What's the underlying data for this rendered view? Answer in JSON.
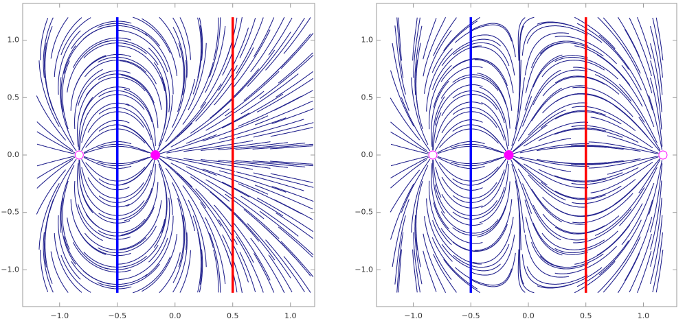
{
  "chart_data": [
    {
      "type": "streamplot",
      "xlim": [
        -1.32,
        1.21
      ],
      "ylim": [
        -1.32,
        1.32
      ],
      "xticks": [
        {
          "value": -1,
          "label": "−1.0"
        },
        {
          "value": -0.5,
          "label": "−0.5"
        },
        {
          "value": 0,
          "label": "0.0"
        },
        0.5,
        {
          "value": 1,
          "label": "1.0"
        }
      ],
      "yticks": [
        {
          "value": -1,
          "label": "−1.0"
        },
        {
          "value": -0.5,
          "label": "−0.5"
        },
        {
          "value": 0,
          "label": "0.0"
        },
        0.5,
        {
          "value": 1,
          "label": "1.0"
        }
      ],
      "stream_color": "#23238e",
      "stream_region": [
        -1.2,
        1.2
      ],
      "vlines": [
        {
          "x": -0.5,
          "color": "#0000ff"
        },
        {
          "x": 0.5,
          "color": "#ff0000"
        }
      ],
      "points": [
        {
          "x": -0.83,
          "y": 0,
          "filled": false,
          "color": "#ff00ff"
        },
        {
          "x": -0.17,
          "y": 0,
          "filled": true,
          "color": "#ff00ff"
        }
      ]
    },
    {
      "type": "streamplot",
      "xlim": [
        -1.32,
        1.29
      ],
      "ylim": [
        -1.32,
        1.32
      ],
      "xticks": [
        {
          "value": -1,
          "label": "−1.0"
        },
        {
          "value": -0.5,
          "label": "−0.5"
        },
        {
          "value": 0,
          "label": "0.0"
        },
        0.5,
        {
          "value": 1,
          "label": "1.0"
        }
      ],
      "yticks": [
        {
          "value": -1,
          "label": "−1.0"
        },
        {
          "value": -0.5,
          "label": "−0.5"
        },
        {
          "value": 0,
          "label": "0.0"
        },
        0.5,
        {
          "value": 1,
          "label": "1.0"
        }
      ],
      "stream_color": "#23238e",
      "stream_region": [
        -1.2,
        1.2
      ],
      "vlines": [
        {
          "x": -0.5,
          "color": "#0000ff"
        },
        {
          "x": 0.5,
          "color": "#ff0000"
        }
      ],
      "points": [
        {
          "x": -0.83,
          "y": 0,
          "filled": false,
          "color": "#ff00ff"
        },
        {
          "x": -0.17,
          "y": 0,
          "filled": true,
          "color": "#ff00ff"
        },
        {
          "x": 1.17,
          "y": 0,
          "filled": false,
          "color": "#ff00ff"
        }
      ]
    }
  ]
}
